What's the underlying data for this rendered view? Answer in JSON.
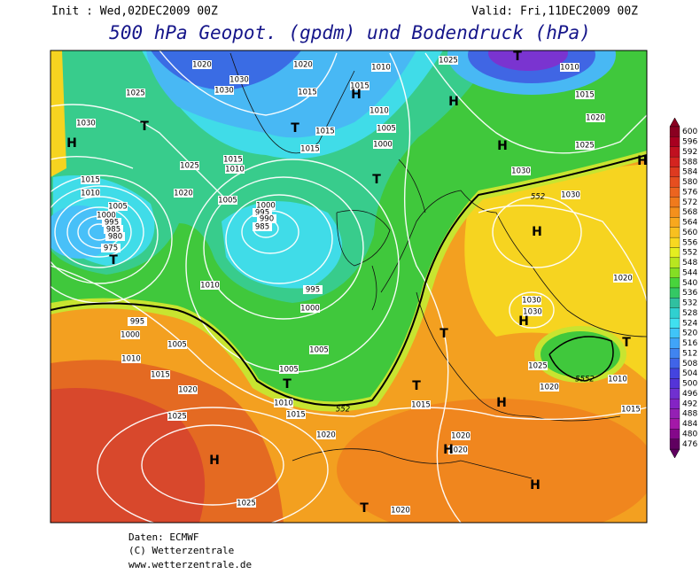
{
  "header": {
    "init": "Init : Wed,02DEC2009 00Z",
    "valid": "Valid: Fri,11DEC2009 00Z",
    "title": "500 hPa Geopot. (gpdm) und Bodendruck (hPa)"
  },
  "map": {
    "isobar_labels": [
      "1020",
      "1020",
      "1010",
      "1025",
      "1010",
      "1025",
      "1030",
      "1030",
      "1015",
      "1015",
      "1010",
      "1015",
      "1030",
      "1005",
      "1015",
      "1020",
      "1000",
      "1015",
      "1025",
      "1015",
      "1025",
      "1010",
      "1030",
      "1015",
      "1020",
      "1005",
      "1030",
      "1010",
      "1005",
      "1000",
      "995",
      "990",
      "985",
      "1000",
      "995",
      "985",
      "980",
      "975",
      "1010",
      "1020",
      "995",
      "1030",
      "1030",
      "1000",
      "995",
      "1000",
      "1005",
      "1005",
      "1010",
      "1025",
      "1015",
      "1005",
      "1010",
      "1020",
      "1020",
      "1010",
      "1015",
      "1015",
      "1015",
      "1025",
      "1020",
      "1020",
      "1020",
      "1025",
      "1020"
    ],
    "contour_labels": [
      "552",
      "552",
      "5552"
    ],
    "centers": [
      "H",
      "T",
      "T",
      "H",
      "H",
      "T",
      "H",
      "H",
      "T",
      "T",
      "H",
      "T",
      "T",
      "T",
      "H",
      "T",
      "H",
      "H",
      "H",
      "H",
      "T"
    ]
  },
  "colorbar": {
    "levels": [
      600,
      596,
      592,
      588,
      584,
      580,
      576,
      572,
      568,
      564,
      560,
      556,
      552,
      548,
      544,
      540,
      536,
      532,
      528,
      524,
      520,
      516,
      512,
      508,
      504,
      500,
      496,
      492,
      488,
      484,
      480,
      476
    ],
    "colors": [
      "#8a0020",
      "#a80020",
      "#c01020",
      "#d42420",
      "#de3a20",
      "#e64e20",
      "#ec6420",
      "#f07a1c",
      "#f4901c",
      "#f8a81e",
      "#f8c020",
      "#f8d820",
      "#e4ee20",
      "#b8e620",
      "#84de24",
      "#48d43c",
      "#34c864",
      "#30c0a0",
      "#30d0d0",
      "#40e0f0",
      "#40c4f8",
      "#40a4f8",
      "#4084f0",
      "#4064e8",
      "#4444e0",
      "#5434d8",
      "#7030d0",
      "#8424c4",
      "#9420b4",
      "#a418a8",
      "#84088a",
      "#600060"
    ]
  },
  "footer": {
    "lines": [
      "Daten: ECMWF",
      "(C) Wetterzentrale",
      "www.wetterzentrale.de"
    ]
  }
}
